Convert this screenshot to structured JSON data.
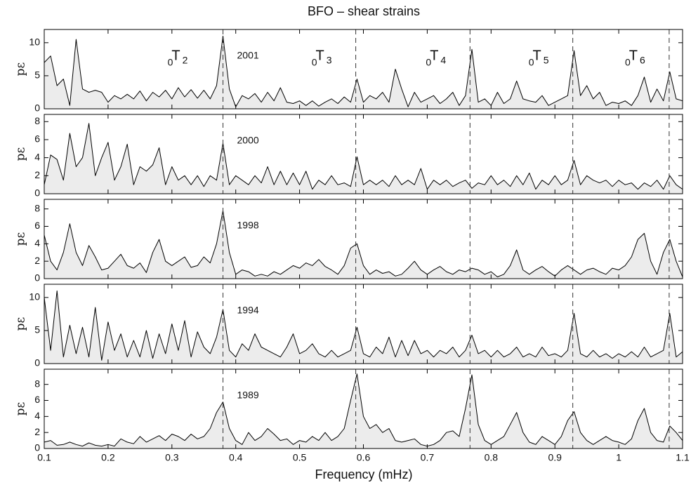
{
  "chart_data": [
    {
      "type": "area",
      "title": "BFO – shear strains",
      "ylabel": "pε",
      "label": "2001",
      "color": "#ececec",
      "modes": [
        {
          "x": 0.38,
          "pre": "0",
          "name": "T",
          "sub": "2"
        },
        {
          "x": 0.588,
          "pre": "0",
          "name": "T",
          "sub": "3"
        },
        {
          "x": 0.767,
          "pre": "0",
          "name": "T",
          "sub": "4"
        },
        {
          "x": 0.928,
          "pre": "0",
          "name": "T",
          "sub": "5"
        },
        {
          "x": 1.079,
          "pre": "0",
          "name": "T",
          "sub": "6"
        }
      ],
      "xlim": [
        0.1,
        1.1
      ],
      "ylim": [
        0,
        12
      ],
      "yticks": [
        0,
        5,
        10
      ],
      "x": [
        0.1,
        0.11,
        0.12,
        0.13,
        0.14,
        0.15,
        0.16,
        0.17,
        0.18,
        0.19,
        0.2,
        0.21,
        0.22,
        0.23,
        0.24,
        0.25,
        0.26,
        0.27,
        0.28,
        0.29,
        0.3,
        0.31,
        0.32,
        0.33,
        0.34,
        0.35,
        0.36,
        0.37,
        0.38,
        0.39,
        0.4,
        0.41,
        0.42,
        0.43,
        0.44,
        0.45,
        0.46,
        0.47,
        0.48,
        0.49,
        0.5,
        0.51,
        0.52,
        0.53,
        0.54,
        0.55,
        0.56,
        0.57,
        0.58,
        0.59,
        0.6,
        0.61,
        0.62,
        0.63,
        0.64,
        0.65,
        0.66,
        0.67,
        0.68,
        0.69,
        0.7,
        0.71,
        0.72,
        0.73,
        0.74,
        0.75,
        0.76,
        0.77,
        0.78,
        0.79,
        0.8,
        0.81,
        0.82,
        0.83,
        0.84,
        0.85,
        0.86,
        0.87,
        0.88,
        0.89,
        0.9,
        0.91,
        0.92,
        0.93,
        0.94,
        0.95,
        0.96,
        0.97,
        0.98,
        0.99,
        1,
        1.01,
        1.02,
        1.03,
        1.04,
        1.05,
        1.06,
        1.07,
        1.08,
        1.09,
        1.1
      ],
      "values": [
        7,
        8,
        3.5,
        4.5,
        0.5,
        10.5,
        3,
        2.5,
        2.8,
        2.5,
        1,
        2,
        1.5,
        2.2,
        1.5,
        2.7,
        1.2,
        2.5,
        1.8,
        2.8,
        1.5,
        3.2,
        1.8,
        2.9,
        1.6,
        2.8,
        1.5,
        3.5,
        11,
        3,
        0.3,
        2,
        1.5,
        2.3,
        1,
        2.5,
        1.2,
        3.2,
        1,
        0.8,
        1.2,
        0.5,
        1.2,
        0.4,
        1,
        1.5,
        0.8,
        1.8,
        1,
        4.5,
        1,
        2,
        1.5,
        2.5,
        1,
        6,
        3,
        0.3,
        2.5,
        1,
        1.5,
        2,
        0.8,
        1.5,
        2.5,
        0.5,
        2,
        9,
        1,
        1.5,
        0.5,
        2.5,
        0.8,
        1.5,
        4.2,
        1.5,
        1.2,
        1,
        2,
        0.5,
        1,
        1.5,
        2,
        8.8,
        2,
        3.5,
        1.5,
        2.5,
        0.5,
        1,
        0.8,
        1.2,
        0.5,
        2,
        4.8,
        1,
        3,
        1.2,
        5.6,
        1.5,
        1.2
      ]
    },
    {
      "type": "area",
      "ylabel": "pε",
      "label": "2000",
      "color": "#ececec",
      "xlim": [
        0.1,
        1.1
      ],
      "ylim": [
        0,
        8.8
      ],
      "yticks": [
        0,
        2,
        4,
        6,
        8
      ],
      "x": [
        0.1,
        0.11,
        0.12,
        0.13,
        0.14,
        0.15,
        0.16,
        0.17,
        0.18,
        0.19,
        0.2,
        0.21,
        0.22,
        0.23,
        0.24,
        0.25,
        0.26,
        0.27,
        0.28,
        0.29,
        0.3,
        0.31,
        0.32,
        0.33,
        0.34,
        0.35,
        0.36,
        0.37,
        0.38,
        0.39,
        0.4,
        0.41,
        0.42,
        0.43,
        0.44,
        0.45,
        0.46,
        0.47,
        0.48,
        0.49,
        0.5,
        0.51,
        0.52,
        0.53,
        0.54,
        0.55,
        0.56,
        0.57,
        0.58,
        0.59,
        0.6,
        0.61,
        0.62,
        0.63,
        0.64,
        0.65,
        0.66,
        0.67,
        0.68,
        0.69,
        0.7,
        0.71,
        0.72,
        0.73,
        0.74,
        0.75,
        0.76,
        0.77,
        0.78,
        0.79,
        0.8,
        0.81,
        0.82,
        0.83,
        0.84,
        0.85,
        0.86,
        0.87,
        0.88,
        0.89,
        0.9,
        0.91,
        0.92,
        0.93,
        0.94,
        0.95,
        0.96,
        0.97,
        0.98,
        0.99,
        1,
        1.01,
        1.02,
        1.03,
        1.04,
        1.05,
        1.06,
        1.07,
        1.08,
        1.09,
        1.1
      ],
      "values": [
        1,
        4.3,
        3.8,
        1.5,
        6.7,
        3,
        4,
        7.8,
        2,
        4,
        5.7,
        1.5,
        3,
        5.5,
        1,
        3,
        2.5,
        3.2,
        5.1,
        1,
        3,
        1.5,
        2,
        1,
        2,
        0.8,
        2,
        1.5,
        5.6,
        1,
        2,
        1.5,
        1,
        2,
        1.2,
        3,
        1,
        2.5,
        1,
        2.3,
        1,
        2.5,
        0.5,
        1.5,
        1,
        2,
        1,
        1.2,
        0.8,
        4.1,
        1,
        1.5,
        1,
        1.5,
        0.8,
        2,
        1,
        1.5,
        1,
        2.8,
        0.5,
        1.5,
        1,
        1.5,
        0.8,
        1.2,
        1.5,
        0.6,
        1.2,
        1,
        2,
        1,
        1.5,
        0.8,
        2,
        1,
        2.3,
        0.5,
        1.5,
        1,
        2,
        1,
        1.5,
        3.7,
        1,
        2,
        1.5,
        1.2,
        1.5,
        0.8,
        1.5,
        1,
        1.2,
        0.5,
        1.2,
        0.8,
        1.5,
        0.5,
        2,
        1,
        0.5
      ]
    },
    {
      "type": "area",
      "ylabel": "pε",
      "label": "1998",
      "color": "#ececec",
      "xlim": [
        0.1,
        1.1
      ],
      "ylim": [
        0,
        9.1
      ],
      "yticks": [
        0,
        2,
        4,
        6,
        8
      ],
      "x": [
        0.1,
        0.11,
        0.12,
        0.13,
        0.14,
        0.15,
        0.16,
        0.17,
        0.18,
        0.19,
        0.2,
        0.21,
        0.22,
        0.23,
        0.24,
        0.25,
        0.26,
        0.27,
        0.28,
        0.29,
        0.3,
        0.31,
        0.32,
        0.33,
        0.34,
        0.35,
        0.36,
        0.37,
        0.38,
        0.39,
        0.4,
        0.41,
        0.42,
        0.43,
        0.44,
        0.45,
        0.46,
        0.47,
        0.48,
        0.49,
        0.5,
        0.51,
        0.52,
        0.53,
        0.54,
        0.55,
        0.56,
        0.57,
        0.58,
        0.59,
        0.6,
        0.61,
        0.62,
        0.63,
        0.64,
        0.65,
        0.66,
        0.67,
        0.68,
        0.69,
        0.7,
        0.71,
        0.72,
        0.73,
        0.74,
        0.75,
        0.76,
        0.77,
        0.78,
        0.79,
        0.8,
        0.81,
        0.82,
        0.83,
        0.84,
        0.85,
        0.86,
        0.87,
        0.88,
        0.89,
        0.9,
        0.91,
        0.92,
        0.93,
        0.94,
        0.95,
        0.96,
        0.97,
        0.98,
        0.99,
        1,
        1.01,
        1.02,
        1.03,
        1.04,
        1.05,
        1.06,
        1.07,
        1.08,
        1.09,
        1.1
      ],
      "values": [
        5,
        2,
        1,
        3,
        6.3,
        3,
        1.5,
        3.8,
        2.5,
        1,
        1.2,
        2,
        2.8,
        1.5,
        1.2,
        1.8,
        0.7,
        3,
        4.5,
        2,
        1.5,
        2,
        2.5,
        1.3,
        1.5,
        2.5,
        1.8,
        4,
        7.8,
        3,
        0.5,
        1,
        0.8,
        0.3,
        0.5,
        0.3,
        0.8,
        0.5,
        1,
        1.5,
        1.2,
        1.8,
        1.5,
        2.2,
        1.4,
        1,
        0.5,
        1.5,
        3.5,
        4,
        1.5,
        0.5,
        1,
        0.6,
        0.8,
        0.3,
        0.5,
        1.2,
        2,
        1,
        0.5,
        1,
        1.4,
        0.8,
        0.5,
        1,
        0.8,
        1.2,
        1,
        0.5,
        0.8,
        0.2,
        0.5,
        1.5,
        3.3,
        1,
        0.5,
        1,
        1.4,
        0.8,
        0.3,
        1,
        1.5,
        1,
        0.5,
        1,
        1.2,
        0.8,
        0.5,
        1.2,
        1,
        1.5,
        2.5,
        4.5,
        5.2,
        2,
        0.5,
        3,
        4.5,
        2,
        0.2
      ]
    },
    {
      "type": "area",
      "ylabel": "pε",
      "label": "1994",
      "color": "#ececec",
      "xlim": [
        0.1,
        1.1
      ],
      "ylim": [
        0,
        12
      ],
      "yticks": [
        0,
        5,
        10
      ],
      "x": [
        0.1,
        0.11,
        0.12,
        0.13,
        0.14,
        0.15,
        0.16,
        0.17,
        0.18,
        0.19,
        0.2,
        0.21,
        0.22,
        0.23,
        0.24,
        0.25,
        0.26,
        0.27,
        0.28,
        0.29,
        0.3,
        0.31,
        0.32,
        0.33,
        0.34,
        0.35,
        0.36,
        0.37,
        0.38,
        0.39,
        0.4,
        0.41,
        0.42,
        0.43,
        0.44,
        0.45,
        0.46,
        0.47,
        0.48,
        0.49,
        0.5,
        0.51,
        0.52,
        0.53,
        0.54,
        0.55,
        0.56,
        0.57,
        0.58,
        0.59,
        0.6,
        0.61,
        0.62,
        0.63,
        0.64,
        0.65,
        0.66,
        0.67,
        0.68,
        0.69,
        0.7,
        0.71,
        0.72,
        0.73,
        0.74,
        0.75,
        0.76,
        0.77,
        0.78,
        0.79,
        0.8,
        0.81,
        0.82,
        0.83,
        0.84,
        0.85,
        0.86,
        0.87,
        0.88,
        0.89,
        0.9,
        0.91,
        0.92,
        0.93,
        0.94,
        0.95,
        0.96,
        0.97,
        0.98,
        0.99,
        1,
        1.01,
        1.02,
        1.03,
        1.04,
        1.05,
        1.06,
        1.07,
        1.08,
        1.09,
        1.1
      ],
      "values": [
        10,
        2,
        11,
        1,
        5.8,
        1.5,
        5.5,
        1,
        8.5,
        0.5,
        6.3,
        2,
        4.5,
        1,
        3.5,
        1,
        5,
        0.8,
        4.5,
        1.5,
        6,
        2,
        6.5,
        1,
        4.8,
        2.5,
        1.5,
        4,
        8.2,
        2,
        1,
        3,
        2,
        4.5,
        2.5,
        2,
        1.5,
        1,
        2.5,
        4.5,
        1.5,
        2,
        3,
        1.5,
        1,
        2,
        1,
        1.5,
        2,
        5.5,
        1.5,
        1,
        2.5,
        1.5,
        4,
        1,
        3.5,
        1.2,
        3.5,
        1.5,
        2,
        1,
        2,
        1.5,
        2.5,
        1,
        2,
        4.3,
        1.5,
        2,
        1,
        2,
        1,
        1.5,
        2.5,
        1,
        1.5,
        1,
        2.5,
        1.2,
        1.5,
        1,
        2,
        7.6,
        1.5,
        1,
        2,
        1,
        1.5,
        0.8,
        1.5,
        1,
        1.8,
        1,
        2.5,
        1,
        1.5,
        2,
        7.6,
        1,
        1.8
      ]
    },
    {
      "type": "area",
      "ylabel": "pε",
      "label": "1989",
      "color": "#ececec",
      "xlabel": "Frequency (mHz)",
      "xlim": [
        0.1,
        1.1
      ],
      "ylim": [
        0,
        9.9
      ],
      "yticks": [
        0,
        2,
        4,
        6,
        8
      ],
      "xticks": [
        0.1,
        0.2,
        0.3,
        0.4,
        0.5,
        0.6,
        0.7,
        0.8,
        0.9,
        1,
        1.1
      ],
      "x": [
        0.1,
        0.11,
        0.12,
        0.13,
        0.14,
        0.15,
        0.16,
        0.17,
        0.18,
        0.19,
        0.2,
        0.21,
        0.22,
        0.23,
        0.24,
        0.25,
        0.26,
        0.27,
        0.28,
        0.29,
        0.3,
        0.31,
        0.32,
        0.33,
        0.34,
        0.35,
        0.36,
        0.37,
        0.38,
        0.39,
        0.4,
        0.41,
        0.42,
        0.43,
        0.44,
        0.45,
        0.46,
        0.47,
        0.48,
        0.49,
        0.5,
        0.51,
        0.52,
        0.53,
        0.54,
        0.55,
        0.56,
        0.57,
        0.58,
        0.59,
        0.6,
        0.61,
        0.62,
        0.63,
        0.64,
        0.65,
        0.66,
        0.67,
        0.68,
        0.69,
        0.7,
        0.71,
        0.72,
        0.73,
        0.74,
        0.75,
        0.76,
        0.77,
        0.78,
        0.79,
        0.8,
        0.81,
        0.82,
        0.83,
        0.84,
        0.85,
        0.86,
        0.87,
        0.88,
        0.89,
        0.9,
        0.91,
        0.92,
        0.93,
        0.94,
        0.95,
        0.96,
        0.97,
        0.98,
        0.99,
        1,
        1.01,
        1.02,
        1.03,
        1.04,
        1.05,
        1.06,
        1.07,
        1.08,
        1.09,
        1.1
      ],
      "values": [
        0.8,
        1,
        0.4,
        0.5,
        0.8,
        0.5,
        0.3,
        0.7,
        0.4,
        0.3,
        0.5,
        0.3,
        1.2,
        0.8,
        0.6,
        1.5,
        0.8,
        1.2,
        1.6,
        1,
        1.8,
        1.5,
        1,
        1.8,
        1.2,
        1.5,
        2.5,
        4.5,
        5.8,
        2.5,
        1,
        0.5,
        2,
        1,
        1.5,
        2.5,
        1.8,
        1,
        1.2,
        0.5,
        1,
        0.8,
        1.5,
        1,
        2,
        1,
        1.5,
        2.5,
        6,
        9.3,
        4,
        2.5,
        3,
        2,
        2.5,
        1,
        0.8,
        1,
        1.2,
        0.5,
        0.3,
        0.5,
        1,
        2,
        2.2,
        1.5,
        5,
        9.2,
        3,
        1,
        0.5,
        1,
        1.5,
        3,
        4.5,
        2,
        0.8,
        0.5,
        1.5,
        1,
        0.5,
        1.5,
        3.5,
        4.6,
        2,
        1,
        0.5,
        1,
        1.5,
        1,
        0.8,
        0.5,
        1.2,
        3.5,
        5,
        2,
        1,
        0.8,
        2.8,
        2,
        1
      ]
    }
  ]
}
